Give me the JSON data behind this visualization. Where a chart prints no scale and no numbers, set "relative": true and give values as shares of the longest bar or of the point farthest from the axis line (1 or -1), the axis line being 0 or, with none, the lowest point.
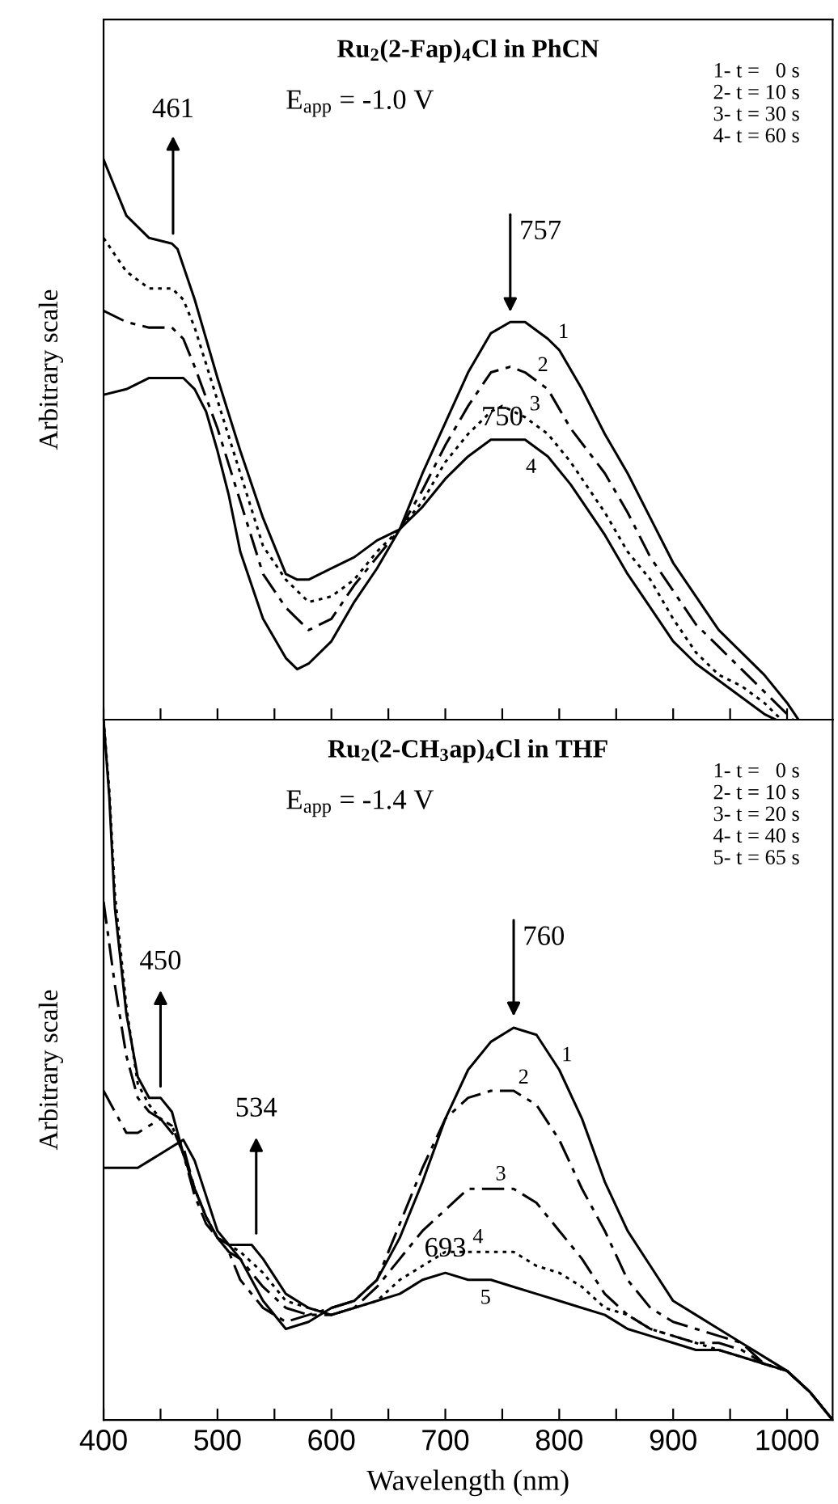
{
  "chart_data": [
    {
      "type": "line",
      "relative": true,
      "title": "Ru$_{2}$(2-Fap)$_{4}$Cl in PhCN",
      "subtitle": "E$_{app}$ = -1.0 V",
      "ylabel": "Arbitrary scale",
      "xlim": [
        400,
        1040
      ],
      "xticks": [
        {
          "value": 400,
          "label": null
        },
        {
          "value": 450,
          "label": null
        },
        {
          "value": 500,
          "label": null
        },
        {
          "value": 550,
          "label": null
        },
        {
          "value": 600,
          "label": null
        },
        {
          "value": 650,
          "label": null
        },
        {
          "value": 700,
          "label": null
        },
        {
          "value": 750,
          "label": null
        },
        {
          "value": 800,
          "label": null
        },
        {
          "value": 850,
          "label": null
        },
        {
          "value": 900,
          "label": null
        },
        {
          "value": 950,
          "label": null
        },
        {
          "value": 1000,
          "label": null
        }
      ],
      "tick_labels": false,
      "grid": false,
      "legend": false,
      "marker": "none",
      "annotations": [
        "1- t =   0 s",
        "2- t = 10 s",
        "3- t = 30 s",
        "4- t = 60 s",
        {
          "text": "461",
          "x": 461,
          "y": 0.85
        },
        {
          "text": "757",
          "x": 757,
          "y": 0.71
        },
        {
          "text": "750",
          "x": 750,
          "y": 0.5
        }
      ],
      "series": [
        {
          "name": "1",
          "color": "#000000",
          "line_style": "solid",
          "x": [
            400,
            420,
            440,
            460,
            470,
            480,
            490,
            500,
            510,
            520,
            540,
            560,
            570,
            580,
            600,
            620,
            640,
            660,
            680,
            700,
            720,
            740,
            757,
            770,
            790,
            800,
            820,
            840,
            860,
            880,
            900,
            920,
            940,
            960,
            980,
            1000,
            1010
          ],
          "values": [
            0.58,
            0.59,
            0.61,
            0.61,
            0.61,
            0.59,
            0.55,
            0.48,
            0.4,
            0.3,
            0.18,
            0.11,
            0.09,
            0.1,
            0.14,
            0.21,
            0.27,
            0.34,
            0.44,
            0.53,
            0.62,
            0.69,
            0.71,
            0.71,
            0.68,
            0.66,
            0.59,
            0.51,
            0.44,
            0.36,
            0.28,
            0.22,
            0.16,
            0.12,
            0.08,
            0.03,
            0
          ]
        },
        {
          "name": "2",
          "color": "#000000",
          "line_style": "dashed",
          "x": [
            400,
            420,
            440,
            460,
            470,
            480,
            500,
            520,
            540,
            560,
            580,
            600,
            620,
            640,
            660,
            680,
            700,
            720,
            740,
            757,
            770,
            790,
            810,
            840,
            860,
            880,
            900,
            920,
            940,
            960,
            980,
            1000,
            1005
          ],
          "values": [
            0.73,
            0.71,
            0.7,
            0.7,
            0.68,
            0.63,
            0.52,
            0.39,
            0.26,
            0.2,
            0.16,
            0.18,
            0.24,
            0.29,
            0.34,
            0.41,
            0.49,
            0.56,
            0.62,
            0.63,
            0.62,
            0.59,
            0.52,
            0.44,
            0.37,
            0.29,
            0.23,
            0.17,
            0.13,
            0.09,
            0.05,
            0.01,
            0
          ]
        },
        {
          "name": "3",
          "color": "#000000",
          "line_style": "dotted",
          "x": [
            400,
            420,
            440,
            460,
            470,
            480,
            500,
            520,
            540,
            560,
            580,
            600,
            620,
            640,
            660,
            680,
            700,
            720,
            740,
            750,
            770,
            790,
            810,
            840,
            860,
            880,
            900,
            920,
            940,
            960,
            980,
            995
          ],
          "values": [
            0.86,
            0.8,
            0.77,
            0.77,
            0.75,
            0.7,
            0.57,
            0.44,
            0.31,
            0.25,
            0.21,
            0.22,
            0.25,
            0.3,
            0.34,
            0.39,
            0.46,
            0.51,
            0.55,
            0.56,
            0.54,
            0.51,
            0.46,
            0.37,
            0.3,
            0.25,
            0.18,
            0.12,
            0.08,
            0.06,
            0.03,
            0
          ]
        },
        {
          "name": "4",
          "color": "#000000",
          "line_style": "solid",
          "x": [
            400,
            410,
            420,
            440,
            460,
            465,
            480,
            500,
            520,
            540,
            560,
            570,
            580,
            600,
            620,
            640,
            660,
            680,
            700,
            720,
            740,
            750,
            770,
            790,
            810,
            840,
            860,
            880,
            900,
            920,
            940,
            960,
            980,
            990
          ],
          "values": [
            1.0,
            0.95,
            0.9,
            0.86,
            0.85,
            0.84,
            0.75,
            0.61,
            0.48,
            0.36,
            0.26,
            0.25,
            0.25,
            0.27,
            0.29,
            0.32,
            0.34,
            0.38,
            0.43,
            0.47,
            0.5,
            0.5,
            0.5,
            0.47,
            0.42,
            0.33,
            0.26,
            0.2,
            0.14,
            0.1,
            0.07,
            0.04,
            0.01,
            0
          ]
        }
      ]
    },
    {
      "type": "line",
      "relative": true,
      "title": "Ru$_{2}$(2-CH$_{3}$ap)$_{4}$Cl in THF",
      "subtitle": "E$_{app}$ = -1.4 V",
      "ylabel": "Arbitrary scale",
      "xlabel": "Wavelength (nm)",
      "xlim": [
        400,
        1040
      ],
      "xticks": [
        400,
        {
          "value": 450,
          "label": null
        },
        500,
        {
          "value": 550,
          "label": null
        },
        600,
        {
          "value": 650,
          "label": null
        },
        700,
        {
          "value": 750,
          "label": null
        },
        800,
        {
          "value": 850,
          "label": null
        },
        900,
        {
          "value": 950,
          "label": null
        },
        1000
      ],
      "tick_labels": "x",
      "grid": false,
      "legend": false,
      "marker": "none",
      "annotations": [
        "1- t =   0 s",
        "2- t = 10 s",
        "3- t = 20 s",
        "4- t = 40 s",
        "5- t = 65 s",
        {
          "text": "450",
          "x": 450,
          "y": 0.46
        },
        {
          "text": "534",
          "x": 534,
          "y": 0.25
        },
        {
          "text": "760",
          "x": 760,
          "y": 0.56
        },
        {
          "text": "693",
          "x": 700,
          "y": 0.21
        }
      ],
      "series": [
        {
          "name": "1",
          "color": "#000000",
          "line_style": "solid",
          "x": [
            400,
            420,
            430,
            440,
            450,
            460,
            470,
            480,
            490,
            500,
            510,
            520,
            540,
            560,
            580,
            600,
            620,
            640,
            660,
            680,
            700,
            720,
            740,
            760,
            780,
            800,
            820,
            840,
            860,
            880,
            900,
            920,
            940,
            960,
            980,
            1000,
            1020,
            1040
          ],
          "values": [
            0.36,
            0.36,
            0.36,
            0.37,
            0.38,
            0.39,
            0.4,
            0.37,
            0.32,
            0.27,
            0.25,
            0.23,
            0.17,
            0.13,
            0.14,
            0.16,
            0.17,
            0.2,
            0.26,
            0.34,
            0.43,
            0.5,
            0.54,
            0.56,
            0.55,
            0.5,
            0.43,
            0.34,
            0.27,
            0.22,
            0.17,
            0.15,
            0.13,
            0.11,
            0.09,
            0.07,
            0.04,
            0
          ]
        },
        {
          "name": "2",
          "color": "#000000",
          "line_style": "dashed",
          "x": [
            400,
            410,
            420,
            430,
            440,
            450,
            460,
            470,
            480,
            490,
            500,
            510,
            520,
            540,
            560,
            580,
            600,
            620,
            640,
            660,
            680,
            700,
            720,
            740,
            760,
            780,
            800,
            820,
            840,
            860,
            880,
            900,
            920,
            940,
            960,
            980,
            1000,
            1020,
            1040
          ],
          "values": [
            0.47,
            0.44,
            0.41,
            0.41,
            0.42,
            0.43,
            0.41,
            0.39,
            0.33,
            0.29,
            0.26,
            0.24,
            0.2,
            0.16,
            0.14,
            0.15,
            0.16,
            0.17,
            0.2,
            0.28,
            0.36,
            0.43,
            0.46,
            0.47,
            0.47,
            0.45,
            0.4,
            0.33,
            0.27,
            0.2,
            0.16,
            0.14,
            0.13,
            0.12,
            0.11,
            0.08,
            0.07,
            0.04,
            0
          ]
        },
        {
          "name": "3",
          "color": "#000000",
          "line_style": "dashed",
          "x": [
            400,
            410,
            420,
            430,
            440,
            450,
            460,
            470,
            480,
            490,
            500,
            510,
            520,
            540,
            560,
            580,
            600,
            620,
            640,
            660,
            680,
            700,
            720,
            740,
            760,
            780,
            800,
            820,
            840,
            860,
            880,
            900,
            920,
            940,
            960,
            980,
            1000,
            1020,
            1040
          ],
          "values": [
            0.74,
            0.62,
            0.52,
            0.46,
            0.44,
            0.43,
            0.42,
            0.38,
            0.32,
            0.28,
            0.26,
            0.24,
            0.23,
            0.19,
            0.16,
            0.15,
            0.15,
            0.16,
            0.19,
            0.23,
            0.27,
            0.3,
            0.33,
            0.33,
            0.33,
            0.31,
            0.27,
            0.23,
            0.18,
            0.15,
            0.13,
            0.12,
            0.11,
            0.11,
            0.1,
            0.08,
            0.07,
            0.04,
            0
          ]
        },
        {
          "name": "4",
          "color": "#000000",
          "line_style": "dotted",
          "x": [
            400,
            405,
            410,
            420,
            430,
            440,
            450,
            460,
            470,
            480,
            490,
            500,
            510,
            520,
            540,
            560,
            580,
            600,
            620,
            640,
            660,
            680,
            700,
            720,
            740,
            760,
            780,
            800,
            820,
            840,
            860,
            880,
            900,
            920,
            940,
            960,
            980,
            1000,
            1020,
            1040
          ],
          "values": [
            1.0,
            0.9,
            0.75,
            0.59,
            0.48,
            0.45,
            0.43,
            0.42,
            0.38,
            0.33,
            0.29,
            0.26,
            0.25,
            0.24,
            0.21,
            0.17,
            0.16,
            0.15,
            0.16,
            0.17,
            0.2,
            0.22,
            0.24,
            0.24,
            0.24,
            0.24,
            0.22,
            0.21,
            0.19,
            0.16,
            0.15,
            0.13,
            0.12,
            0.11,
            0.1,
            0.09,
            0.08,
            0.07,
            0.04,
            0
          ]
        },
        {
          "name": "5",
          "color": "#000000",
          "line_style": "solid",
          "x": [
            400,
            405,
            410,
            420,
            430,
            440,
            450,
            460,
            470,
            480,
            490,
            500,
            510,
            520,
            530,
            540,
            560,
            580,
            600,
            620,
            640,
            660,
            680,
            700,
            720,
            740,
            760,
            780,
            800,
            820,
            840,
            860,
            880,
            900,
            920,
            940,
            960,
            980,
            1000,
            1020,
            1040
          ],
          "values": [
            1.0,
            0.89,
            0.73,
            0.58,
            0.49,
            0.46,
            0.46,
            0.44,
            0.38,
            0.33,
            0.29,
            0.26,
            0.25,
            0.25,
            0.25,
            0.23,
            0.18,
            0.16,
            0.15,
            0.16,
            0.17,
            0.18,
            0.2,
            0.21,
            0.2,
            0.2,
            0.19,
            0.18,
            0.17,
            0.16,
            0.15,
            0.13,
            0.12,
            0.11,
            0.1,
            0.1,
            0.09,
            0.08,
            0.07,
            0.04,
            0
          ]
        }
      ]
    }
  ]
}
